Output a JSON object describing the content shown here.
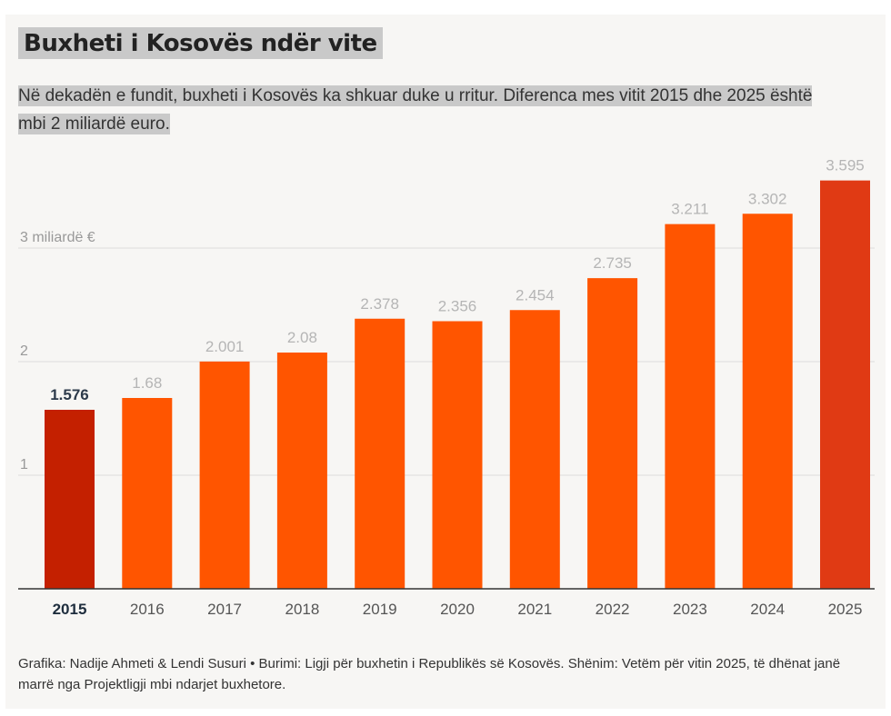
{
  "title": "Buxheti i Kosovës ndër vite",
  "subtitle": "Në dekadën e fundit, buxheti i Kosovës ka shkuar duke u rritur. Diferenca mes vitit 2015 dhe 2025 është mbi 2 miliardë euro.",
  "footer": "Grafika: Nadije Ahmeti & Lendi Susuri • Burimi: Ligji për buxhetin i Republikës së Kosovës. Shënim: Vetëm për vitin 2025, të dhënat janë marrë nga Projektligji mbi ndarjet buxhetore.",
  "colors": {
    "highlight_first": "#c42000",
    "normal": "#ff5500",
    "highlight_last": "#e03a14",
    "gridline": "#dcdcdc",
    "axis": "#333333",
    "value_label": "#b5b5b5",
    "value_label_first": "#2c3a4a",
    "tick_label": "#999999"
  },
  "chart_data": {
    "type": "bar",
    "categories": [
      "2015",
      "2016",
      "2017",
      "2018",
      "2019",
      "2020",
      "2021",
      "2022",
      "2023",
      "2024",
      "2025"
    ],
    "values": [
      1.576,
      1.68,
      2.001,
      2.08,
      2.378,
      2.356,
      2.454,
      2.735,
      3.211,
      3.302,
      3.595
    ],
    "value_labels": [
      "1.576",
      "1.68",
      "2.001",
      "2.08",
      "2.378",
      "2.356",
      "2.454",
      "2.735",
      "3.211",
      "3.302",
      "3.595"
    ],
    "ylim": [
      0,
      3.6
    ],
    "yticks": [
      1,
      2,
      3
    ],
    "ytick_labels": [
      "1",
      "2",
      "3 miliardë €"
    ],
    "xlabel": "",
    "ylabel": "",
    "grid": true,
    "unit": "miliardë €"
  }
}
